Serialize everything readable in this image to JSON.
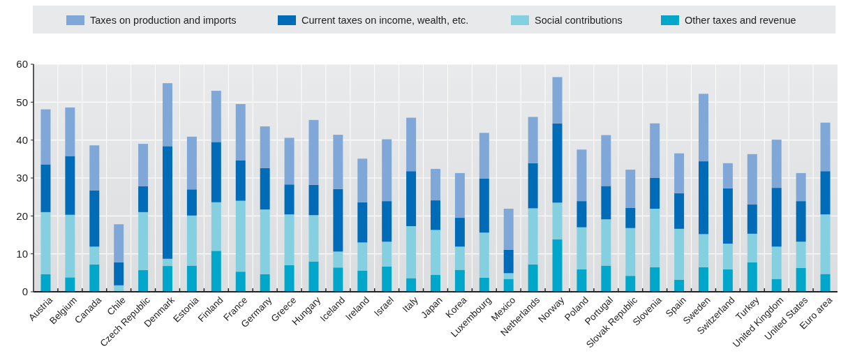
{
  "chart_data": {
    "type": "bar",
    "stacked": true,
    "categories": [
      "Austria",
      "Belgium",
      "Canada",
      "Chile",
      "Czech Republic",
      "Denmark",
      "Estonia",
      "Finland",
      "France",
      "Germany",
      "Greece",
      "Hungary",
      "Iceland",
      "Ireland",
      "Israel",
      "Italy",
      "Japan",
      "Korea",
      "Luxembourg",
      "Mexico",
      "Netherlands",
      "Norway",
      "Poland",
      "Portugal",
      "Slovak Republic",
      "Slovenia",
      "Spain",
      "Sweden",
      "Switzerland",
      "Turkey",
      "United Kingdom",
      "United States",
      "Euro area"
    ],
    "series": [
      {
        "name": "Other taxes and revenue",
        "color": "#00a7cb",
        "values": [
          4.6,
          3.8,
          7.2,
          0,
          5.7,
          6.8,
          6.9,
          10.8,
          5.3,
          4.6,
          7.0,
          8.0,
          6.4,
          5.6,
          6.7,
          3.6,
          4.5,
          5.8,
          3.7,
          3.4,
          7.2,
          13.8,
          5.9,
          6.9,
          4.2,
          6.5,
          3.2,
          6.5,
          5.9,
          7.8,
          3.4,
          6.3,
          4.7
        ]
      },
      {
        "name": "Social contributions",
        "color": "#85d0e0",
        "values": [
          16.4,
          16.5,
          4.7,
          1.7,
          15.3,
          1.9,
          13.2,
          12.8,
          18.7,
          17.1,
          13.4,
          12.2,
          4.2,
          7.4,
          6.5,
          13.7,
          11.8,
          6.1,
          11.9,
          1.5,
          14.8,
          9.7,
          11.1,
          12.2,
          12.6,
          15.4,
          13.4,
          8.7,
          6.8,
          7.5,
          8.5,
          6.9,
          15.7
        ]
      },
      {
        "name": "Current taxes on income, wealth, etc.",
        "color": "#006bb6",
        "values": [
          12.6,
          15.5,
          14.8,
          6.1,
          6.8,
          29.7,
          6.9,
          15.9,
          10.6,
          10.9,
          7.9,
          8.0,
          16.5,
          10.6,
          10.7,
          14.5,
          7.8,
          7.6,
          14.3,
          6.2,
          11.9,
          20.9,
          6.9,
          8.8,
          5.3,
          8.1,
          9.4,
          19.2,
          14.6,
          7.7,
          15.5,
          10.7,
          11.4
        ]
      },
      {
        "name": "Taxes on production and imports",
        "color": "#7fa7d8",
        "values": [
          14.5,
          12.8,
          11.9,
          10.0,
          11.2,
          16.6,
          13.9,
          13.5,
          14.9,
          11.0,
          12.3,
          17.1,
          14.3,
          11.5,
          16.3,
          14.1,
          8.3,
          11.8,
          12.0,
          10.8,
          12.2,
          12.2,
          13.6,
          13.4,
          10.1,
          14.4,
          10.5,
          17.8,
          6.6,
          13.3,
          12.7,
          7.4,
          12.8
        ]
      }
    ],
    "ylim": [
      0,
      60
    ],
    "yticks": [
      0,
      10,
      20,
      30,
      40,
      50,
      60
    ],
    "grid": true,
    "legend": "top"
  }
}
